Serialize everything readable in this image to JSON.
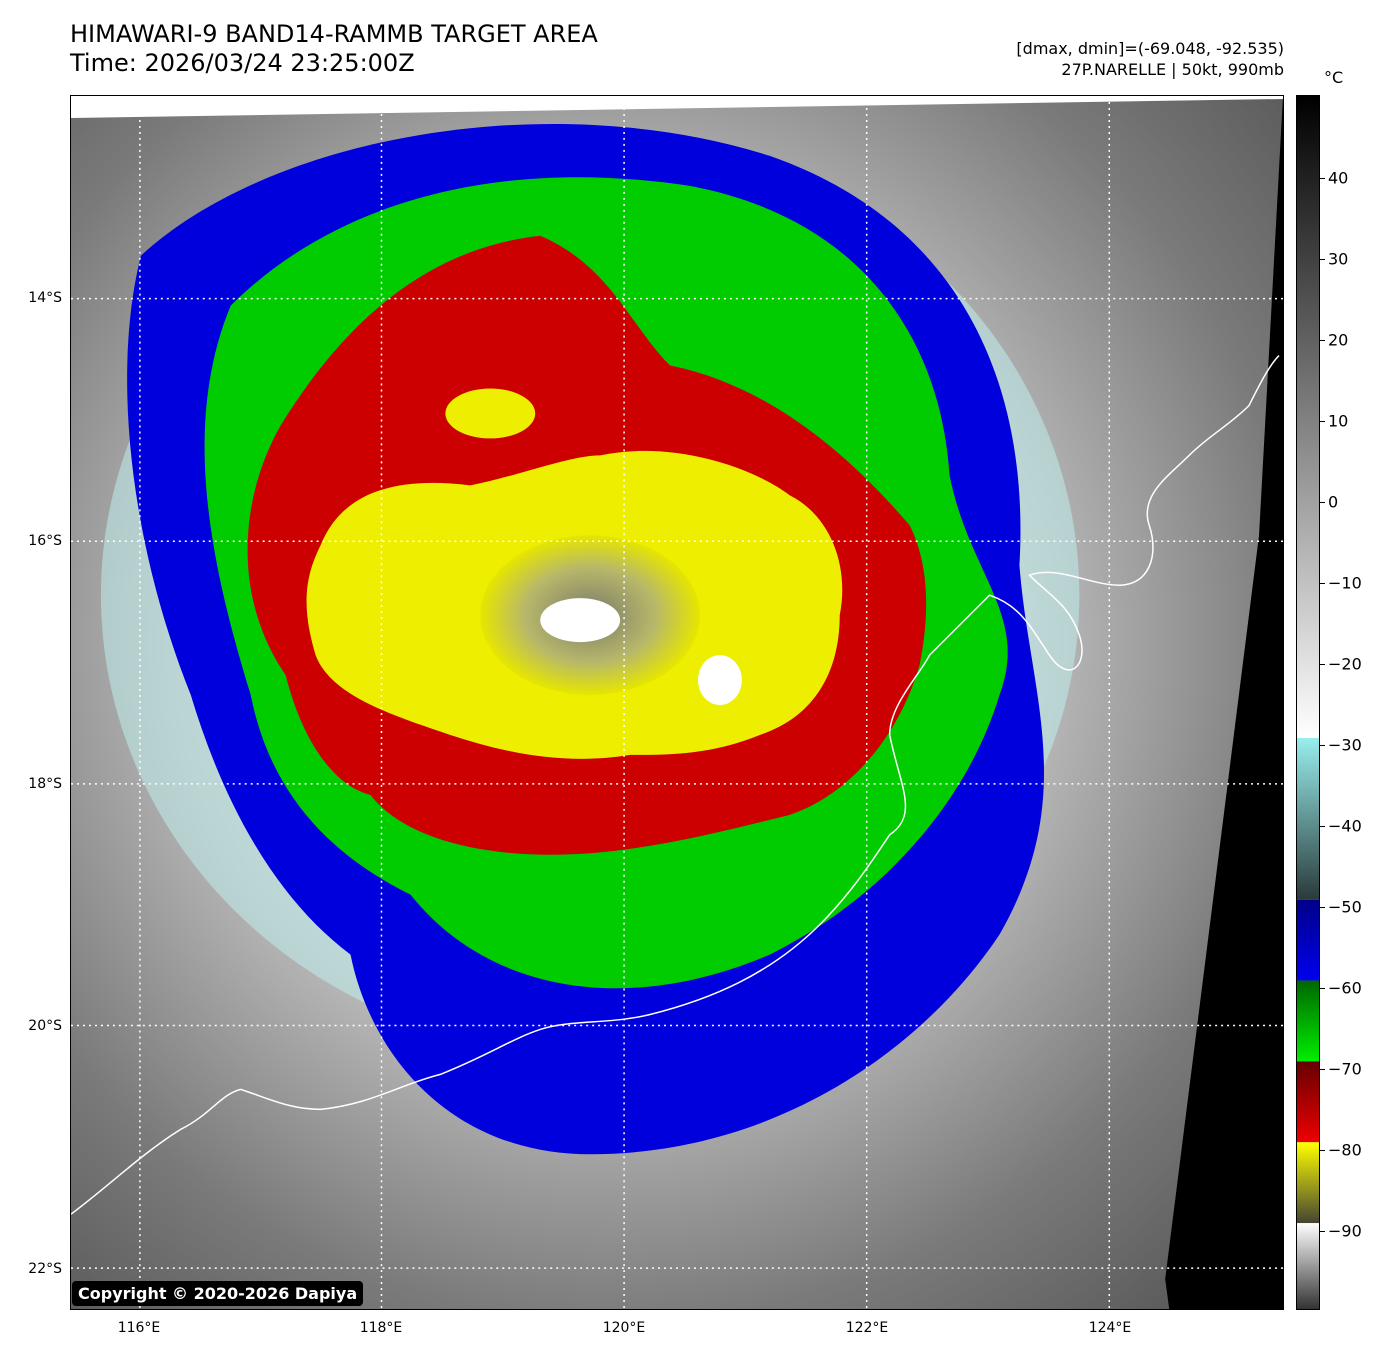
{
  "header": {
    "title_line1": "HIMAWARI-9 BAND14-RAMMB TARGET AREA",
    "title_line2": "Time: 2026/03/24 23:25:00Z",
    "info_line1": "[dmax, dmin]=(-69.048, -92.535)",
    "info_line2": "27P.NARELLE | 50kt, 990mb"
  },
  "map": {
    "lat_labels": [
      "14°S",
      "16°S",
      "18°S",
      "20°S",
      "22°S"
    ],
    "lon_labels": [
      "116°E",
      "118°E",
      "120°E",
      "122°E",
      "124°E"
    ]
  },
  "colorbar": {
    "unit": "°C",
    "ticks": [
      "40",
      "30",
      "20",
      "10",
      "0",
      "−10",
      "−20",
      "−30",
      "−40",
      "−50",
      "−60",
      "−70",
      "−80",
      "−90"
    ],
    "colors": {
      "warm_black": "#000000",
      "cyan": "#99eeee",
      "blue": "#0000dd",
      "green": "#00cc00",
      "red": "#cc0000",
      "yellow": "#eeee00"
    }
  },
  "copyright": "Copyright © 2020-2026 Dapiya"
}
